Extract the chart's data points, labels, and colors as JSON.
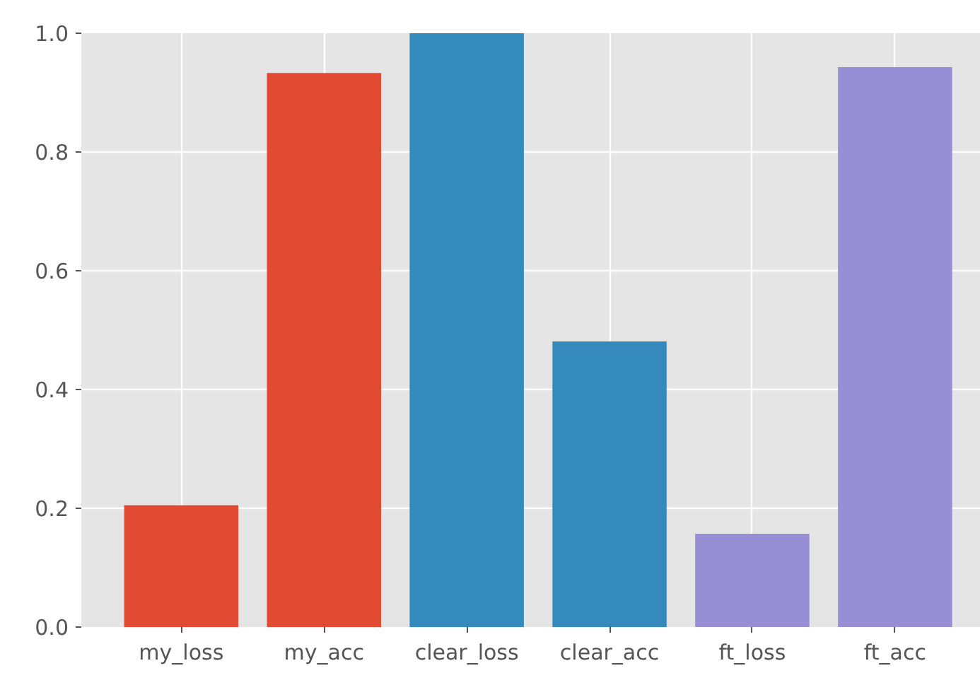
{
  "chart_data": {
    "type": "bar",
    "categories": [
      "my_loss",
      "my_acc",
      "clear_loss",
      "clear_acc",
      "ft_loss",
      "ft_acc"
    ],
    "values": [
      0.205,
      0.933,
      1.0,
      0.481,
      0.157,
      0.943
    ],
    "colors": [
      "#e24a33",
      "#e24a33",
      "#348abd",
      "#348abd",
      "#988ed5",
      "#988ed5"
    ],
    "ylim": [
      0,
      1
    ],
    "yticks": [
      {
        "value": 0,
        "label": "0.0"
      },
      0.2,
      0.4,
      0.6,
      0.8,
      {
        "value": 1,
        "label": "1.0"
      }
    ],
    "grid": true
  }
}
